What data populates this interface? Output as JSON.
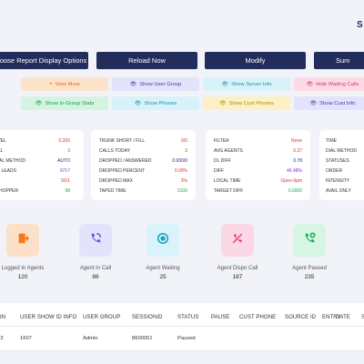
{
  "corner_text": "S",
  "toolbar": {
    "choose": "hoose Report Display Options",
    "reload": "Reload Now",
    "modify": "Modify",
    "summary": "Sum"
  },
  "toggles": {
    "view_more": "View More",
    "show_user_group": "Show User Group",
    "show_server_info": "Show Server Info",
    "hide_waiting_calls": "Hide Waiting Calls",
    "show_ingroup_stats": "Show In-Group Stats",
    "show_phones": "Show Phones",
    "show_cust_phones": "Show Cust Phones",
    "show_cust_info": "Show Cust Info"
  },
  "stats": {
    "card1": [
      {
        "k": "EVEL",
        "v": "0.200",
        "vc": "#e0342c"
      },
      {
        "k": "VEL",
        "v": "3",
        "vc": "#e0342c"
      },
      {
        "k": "DIAL METHOD",
        "v": "AUTO",
        "vc": "#1e2a8c"
      },
      {
        "k": "LE LEADS",
        "v": "9717",
        "vc": "#8a2be2"
      },
      {
        "k": "R",
        "v": "55/1",
        "vc": "#e0342c"
      },
      {
        "k": "N HOPPER",
        "v": "98",
        "vc": "#1fa855"
      }
    ],
    "card2": [
      {
        "k": "TRUNK SHORT / FILL",
        "v": "0/0",
        "vc": "#e0342c"
      },
      {
        "k": "CALLS TODAY",
        "v": "3",
        "vc": "#e0342c"
      },
      {
        "k": "DROPPED / ANSWERED",
        "v": "0.000/0",
        "vc": "#1e2a8c"
      },
      {
        "k": "DROPPED PERCENT",
        "v": "0.00%",
        "vc": "#e0342c"
      },
      {
        "k": "DROPPED MAX",
        "v": "3%",
        "vc": "#e0342c"
      },
      {
        "k": "TAPED TIME",
        "v": "3100",
        "vc": "#1fa855"
      }
    ],
    "card3": [
      {
        "k": "FILTER",
        "v": "None",
        "vc": "#e0342c"
      },
      {
        "k": "AVG AGENTS",
        "v": "0.37",
        "vc": "#e0342c"
      },
      {
        "k": "DL DIFF",
        "v": "0.78",
        "vc": "#1e2a8c"
      },
      {
        "k": "DIFF",
        "v": "46.48%",
        "vc": "#8a2be2"
      },
      {
        "k": "LOCAL TIME",
        "v": "Open-9pm",
        "vc": "#e0342c"
      },
      {
        "k": "TARGET DIFF",
        "v": "0.0000",
        "vc": "#1fa855"
      }
    ],
    "card4": [
      {
        "k": "TIME"
      },
      {
        "k": "DIAL METHOD"
      },
      {
        "k": "STATUSES"
      },
      {
        "k": "ORDER"
      },
      {
        "k": "INTENSITY"
      },
      {
        "k": "AVAIL ONLY"
      }
    ]
  },
  "tiles": [
    {
      "label": "Logged In Agents",
      "value": "120",
      "bg": "#fde0c8",
      "fg": "#f07a1e",
      "icon": "door-exit-icon"
    },
    {
      "label": "Agent In Call",
      "value": "86",
      "bg": "#e3e4fb",
      "fg": "#5a5fe0",
      "icon": "phone-call-icon"
    },
    {
      "label": "Agent Waiting",
      "value": "25",
      "bg": "#d8f4fa",
      "fg": "#1a9fc0",
      "icon": "waiting-icon"
    },
    {
      "label": "Agent Dispo Call",
      "value": "187",
      "bg": "#fcd8e6",
      "fg": "#e4457a",
      "icon": "hangup-icon"
    },
    {
      "label": "Agent Paused",
      "value": "235",
      "bg": "#d6f5e2",
      "fg": "#1fae5a",
      "icon": "phone-paused-icon"
    }
  ],
  "table": {
    "headers": [
      "ON",
      "USER SHOW ID INFO",
      "USER GROUP",
      "SESSIONID",
      "STATUS",
      "PAUSE",
      "CUST PHONE",
      "SOURCE ID",
      "ENTRY",
      "DATE",
      "S"
    ],
    "row": [
      "03",
      "1607",
      "Admin",
      "8600051",
      "Paused",
      "",
      "",
      "",
      "",
      "",
      ""
    ]
  }
}
